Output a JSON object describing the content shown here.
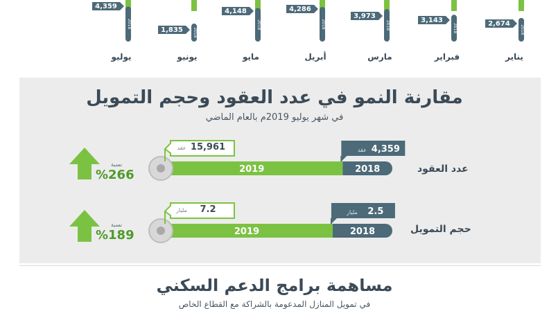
{
  "colors": {
    "green": "#7cc242",
    "slate": "#4c6a78",
    "dark": "#3b4a56",
    "panel": "#ececec"
  },
  "titles": {
    "comparison_title": "مقارنة النمو في عدد العقود وحجم التمويل",
    "comparison_subtitle": "في شهر يوليو 2019م بالعام الماضي",
    "section_title": "مساهمة برامج الدعم السكني",
    "section_subtitle": "في تمويل المنازل المدعومة بالشراكة مع القطاع الخاص"
  },
  "chart_data": [
    {
      "type": "bar",
      "categories": [
        "يناير",
        "فبراير",
        "مارس",
        "أبريل",
        "مايو",
        "يونيو",
        "يوليو"
      ],
      "series": [
        {
          "name": "2018",
          "values": [
            2674,
            3143,
            3973,
            4286,
            4148,
            1835,
            4359
          ],
          "labels": [
            "2,674",
            "3,143",
            "3,973",
            "4,286",
            "4,148",
            "1,835",
            "4,359"
          ]
        }
      ]
    },
    {
      "type": "bar",
      "rows": [
        {
          "label": "عدد العقود",
          "year_a": "2018",
          "year_b": "2019",
          "value_a": 4359,
          "value_a_text": "4,359",
          "unit_a": "عقد",
          "value_b": 15961,
          "value_b_text": "15,961",
          "unit_b": "عقد",
          "growth_label": "نسبة",
          "growth": "%266"
        },
        {
          "label": "حجم التمويل",
          "year_a": "2018",
          "year_b": "2019",
          "value_a": 2.5,
          "value_a_text": "2.5",
          "unit_a": "مليار",
          "value_b": 7.2,
          "value_b_text": "7.2",
          "unit_b": "مليار",
          "growth_label": "نسبة",
          "growth": "%189"
        }
      ]
    }
  ]
}
